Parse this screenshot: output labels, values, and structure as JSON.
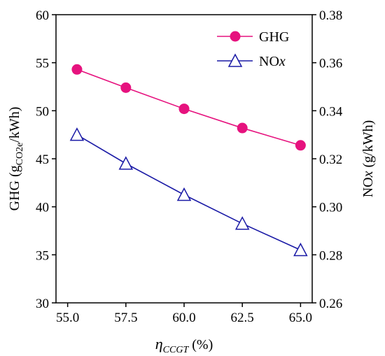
{
  "chart_data": {
    "type": "line",
    "x": [
      55.4,
      57.5,
      60.0,
      62.5,
      65.0
    ],
    "xlim": [
      54.5,
      65.5
    ],
    "x_ticks": [
      "55.0",
      "57.5",
      "60.0",
      "62.5",
      "65.0"
    ],
    "x_tick_values": [
      55.0,
      57.5,
      60.0,
      62.5,
      65.0
    ],
    "xlabel": {
      "main": "η",
      "sub": "CCGT",
      "unit": " (%)"
    },
    "ylim_left": [
      30,
      60
    ],
    "y_ticks_left": [
      "30",
      "35",
      "40",
      "45",
      "50",
      "55",
      "60"
    ],
    "y_tick_values_left": [
      30,
      35,
      40,
      45,
      50,
      55,
      60
    ],
    "ylabel_left": {
      "prefix": "GHG (g",
      "sub": "CO2e",
      "suffix": "/kWh)"
    },
    "ylim_right": [
      0.26,
      0.38
    ],
    "y_ticks_right": [
      "0.26",
      "0.28",
      "0.30",
      "0.32",
      "0.34",
      "0.36",
      "0.38"
    ],
    "y_tick_values_right": [
      0.26,
      0.28,
      0.3,
      0.32,
      0.34,
      0.36,
      0.38
    ],
    "ylabel_right": {
      "prefix": "NO",
      "italic": "x",
      "suffix": " (g/kWh)"
    },
    "legend_placement": "top-right",
    "grid": false,
    "series": [
      {
        "name": "GHG",
        "axis": "left",
        "marker": "circle",
        "color": "#e6127e",
        "values": [
          54.3,
          52.4,
          50.2,
          48.2,
          46.4
        ]
      },
      {
        "name": "NOx",
        "legend_prefix": "NO",
        "legend_italic": "x",
        "axis": "right",
        "marker": "triangle-open",
        "color": "#1a1aa6",
        "values": [
          0.33,
          0.318,
          0.305,
          0.293,
          0.282
        ]
      }
    ]
  }
}
